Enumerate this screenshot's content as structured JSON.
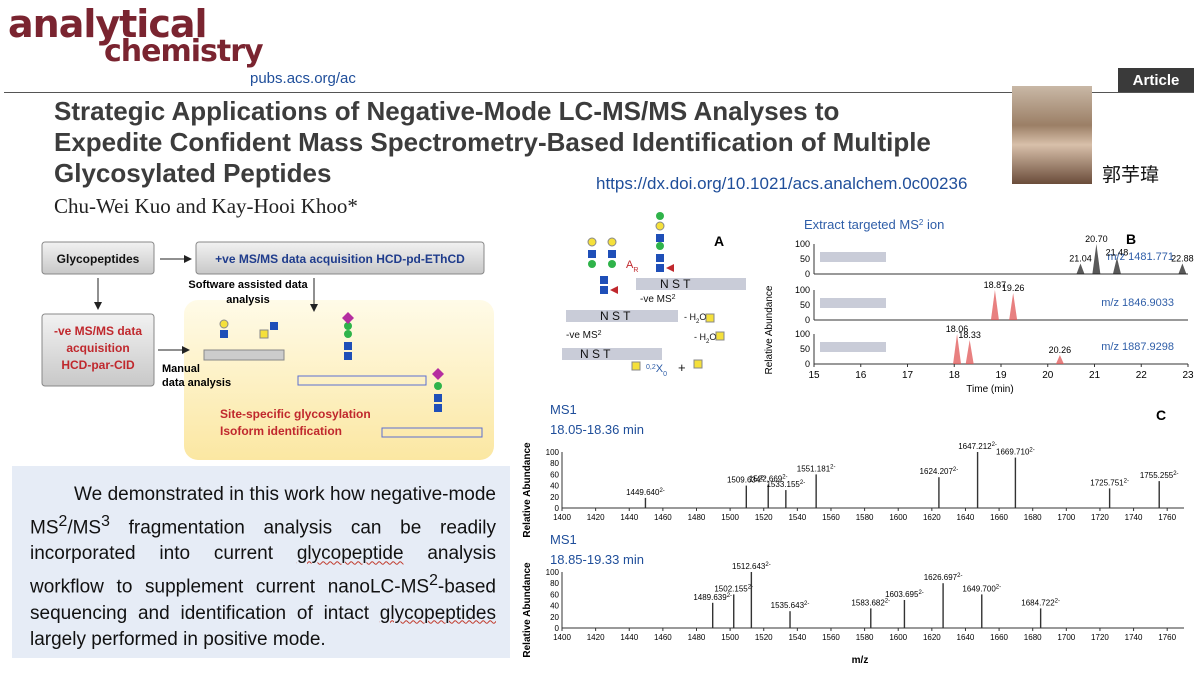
{
  "header": {
    "logo_line1": "analytical",
    "logo_line2": "chemistry",
    "logo_url": "pubs.acs.org/ac",
    "article_tag": "Article",
    "title": "Strategic Applications of Negative-Mode LC-MS/MS Analyses to Expedite Confident Mass Spectrometry-Based Identification of Multiple Glycosylated Peptides",
    "authors": "Chu-Wei Kuo and Kay-Hooi Khoo*",
    "doi": "https://dx.doi.org/10.1021/acs.analchem.0c00236",
    "presenter_name": "郭芋瑋"
  },
  "workflow": {
    "start": "Glycopeptides",
    "positive": "+ve MS/MS data acquisition HCD-pd-EThCD",
    "negative": [
      "-ve MS/MS data",
      "acquisition",
      "HCD-par-CID"
    ],
    "software": [
      "Software assisted data",
      "analysis"
    ],
    "manual": [
      "Manual",
      "data analysis"
    ],
    "result": [
      "Site-specific glycosylation",
      "Isoform identification"
    ]
  },
  "summary": {
    "s1": "We demonstrated in this work how negative-mode MS",
    "s2": "/MS",
    "s3": " fragmentation analysis can be readily incorporated into current ",
    "s4": "glycopeptide",
    "s5": " analysis workflow to supplement current nanoLC-MS",
    "s6": "-based sequencing and identification of intact ",
    "s7": "glycopeptides",
    "s8": " largely performed in positive mode.",
    "sup": "2",
    "sup3": "3"
  },
  "panelA": {
    "label": "A",
    "ar": "A",
    "ar_sub": "R",
    "ve_ms2_a": "-ve MS",
    "ve_ms2_b": "-ve MS",
    "sup": "2",
    "pep": "N S T",
    "h2o": "- H",
    "x0": "X",
    "x0_pre": "0,2",
    "x0_sub": "0",
    "plus": "+"
  },
  "panelB": {
    "label": "B",
    "heading": "Extract targeted MS",
    "heading_sup": "2",
    "heading_tail": " ion",
    "ylabel": "Relative Abundance",
    "xlabel": "Time (min)",
    "traces": [
      {
        "mz": "m/z 1481.771",
        "peaks": [
          "21.04",
          "20.70",
          "21.48",
          "22.88"
        ]
      },
      {
        "mz": "m/z 1846.9033",
        "peaks": [
          "18.87",
          "19.26"
        ]
      },
      {
        "mz": "m/z 1887.9298",
        "peaks": [
          "18.06",
          "18.33",
          "20.26"
        ]
      }
    ],
    "ticks_y": [
      "100",
      "50",
      "0"
    ],
    "ticks_x": [
      "15",
      "16",
      "17",
      "18",
      "19",
      "20",
      "21",
      "22",
      "23"
    ]
  },
  "panelC": {
    "label": "C",
    "ylabel": "Relative Abundance",
    "xlabel": "m/z",
    "spectra": [
      {
        "title": "MS1",
        "range": "18.05-18.36 min",
        "peaks": [
          "1449.640",
          "1509.634",
          "1522.669",
          "1533.155",
          "1551.181",
          "1624.207",
          "1647.212",
          "1669.710",
          "1725.751",
          "1755.255"
        ]
      },
      {
        "title": "MS1",
        "range": "18.85-19.33 min",
        "peaks": [
          "1489.639",
          "1502.155",
          "1512.643",
          "1535.643",
          "1583.682",
          "1603.695",
          "1626.697",
          "1649.700",
          "1684.722"
        ]
      }
    ],
    "ticks_y": [
      "100",
      "80",
      "60",
      "40",
      "20",
      "0"
    ],
    "ticks_x": [
      "1400",
      "1420",
      "1440",
      "1460",
      "1480",
      "1500",
      "1520",
      "1540",
      "1560",
      "1580",
      "1600",
      "1620",
      "1640",
      "1660",
      "1680",
      "1700",
      "1720",
      "1740",
      "1760"
    ],
    "charge_sup": "2-"
  },
  "chart_data": [
    {
      "type": "line",
      "title": "Extract targeted MS2 ion",
      "xlabel": "Time (min)",
      "ylabel": "Relative Abundance",
      "xlim": [
        15,
        23
      ],
      "ylim": [
        0,
        100
      ],
      "series": [
        {
          "name": "m/z 1481.771",
          "x": [
            20.7,
            21.04,
            21.48,
            22.88
          ],
          "y": [
            35,
            100,
            55,
            35
          ]
        },
        {
          "name": "m/z 1846.9033",
          "x": [
            18.87,
            19.26
          ],
          "y": [
            100,
            90
          ]
        },
        {
          "name": "m/z 1887.9298",
          "x": [
            18.06,
            18.33,
            20.26
          ],
          "y": [
            100,
            80,
            30
          ]
        }
      ]
    },
    {
      "type": "bar",
      "title": "MS1 18.05-18.36 min",
      "xlabel": "m/z",
      "ylabel": "Relative Abundance",
      "xlim": [
        1400,
        1770
      ],
      "ylim": [
        0,
        100
      ],
      "x": [
        1449.64,
        1509.634,
        1522.669,
        1533.155,
        1551.181,
        1624.207,
        1647.212,
        1669.71,
        1725.751,
        1755.255
      ],
      "values": [
        18,
        40,
        42,
        32,
        60,
        55,
        100,
        90,
        35,
        48
      ]
    },
    {
      "type": "bar",
      "title": "MS1 18.85-19.33 min",
      "xlabel": "m/z",
      "ylabel": "Relative Abundance",
      "xlim": [
        1400,
        1770
      ],
      "ylim": [
        0,
        100
      ],
      "x": [
        1489.639,
        1502.155,
        1512.643,
        1535.643,
        1583.682,
        1603.695,
        1626.697,
        1649.7,
        1684.722
      ],
      "values": [
        45,
        60,
        100,
        30,
        35,
        50,
        80,
        60,
        35
      ]
    }
  ]
}
